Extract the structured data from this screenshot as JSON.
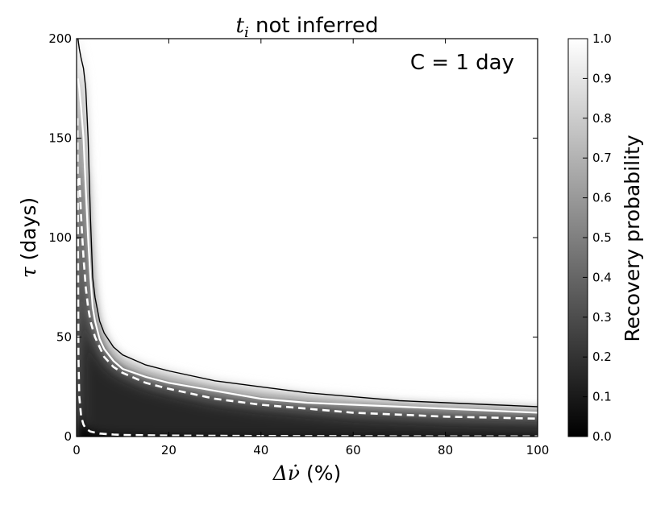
{
  "chart_data": {
    "type": "heatmap",
    "title": "t_i not inferred",
    "title_parts": {
      "symbol_base": "t",
      "symbol_sub": "i",
      "rest": " not inferred"
    },
    "annotation": "C = 1 day",
    "xlabel": "Δν̇ (%)",
    "xlabel_parts": {
      "symbol": "Δν̇",
      "unit": " (%)"
    },
    "ylabel": "τ (days)",
    "ylabel_parts": {
      "symbol": "τ",
      "unit": " (days)"
    },
    "xlim": [
      0,
      100
    ],
    "ylim": [
      0,
      200
    ],
    "xticks": [
      0,
      20,
      40,
      60,
      80,
      100
    ],
    "yticks": [
      0,
      50,
      100,
      150,
      200
    ],
    "colorbar": {
      "label": "Recovery probability",
      "range": [
        0.0,
        1.0
      ],
      "ticks": [
        "0.0",
        "0.1",
        "0.2",
        "0.3",
        "0.4",
        "0.5",
        "0.6",
        "0.7",
        "0.8",
        "0.9",
        "1.0"
      ],
      "colormap": "gray"
    },
    "contours": {
      "black_solid": {
        "x": [
          0.3,
          0.6,
          1,
          1.5,
          2,
          2.5,
          3,
          3.5,
          4,
          5,
          6,
          8,
          10,
          15,
          20,
          30,
          40,
          50,
          60,
          70,
          80,
          90,
          100
        ],
        "y": [
          200,
          195,
          190,
          185,
          175,
          150,
          110,
          80,
          70,
          58,
          52,
          45,
          41,
          36,
          33,
          28,
          25,
          22,
          20,
          18,
          17,
          16,
          15
        ]
      },
      "white_solid": {
        "x": [
          0.3,
          0.6,
          1,
          1.5,
          2,
          2.5,
          3,
          3.5,
          4,
          5,
          6,
          8,
          10,
          15,
          20,
          30,
          40,
          50,
          60,
          70,
          80,
          90,
          100
        ],
        "y": [
          180,
          175,
          165,
          150,
          125,
          100,
          80,
          65,
          58,
          49,
          44,
          38,
          34,
          30,
          27,
          23,
          19,
          17,
          16,
          15,
          14,
          13,
          12
        ]
      },
      "white_dashed_upper": {
        "x": [
          0.6,
          1,
          1.5,
          2,
          2.5,
          3,
          4,
          5,
          6,
          8,
          10,
          15,
          20,
          30,
          40,
          50,
          60,
          70,
          80,
          90,
          100
        ],
        "y": [
          130,
          110,
          90,
          75,
          65,
          58,
          50,
          45,
          40,
          35,
          32,
          27,
          24,
          19,
          16,
          14,
          12,
          11,
          10,
          9.5,
          9
        ]
      },
      "white_dashed_lower": {
        "x": [
          0.2,
          0.4,
          0.6,
          1,
          1.5,
          2,
          3,
          5,
          8,
          10,
          20,
          40,
          60,
          80,
          100
        ],
        "y": [
          160,
          40,
          20,
          10,
          6,
          4,
          2.5,
          1.5,
          1,
          0.8,
          0.5,
          0.3,
          0.2,
          0.1,
          0.1
        ]
      }
    }
  }
}
